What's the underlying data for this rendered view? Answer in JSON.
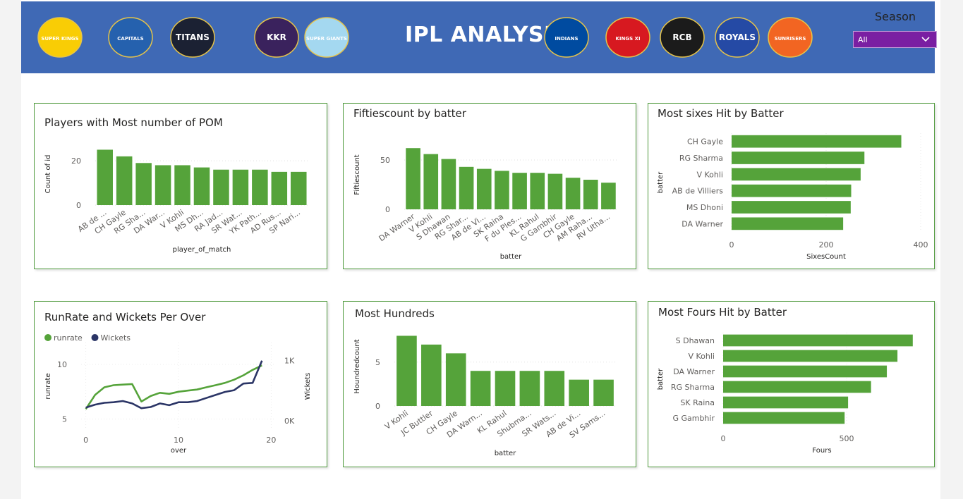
{
  "header": {
    "title": "IPL ANALYSIS",
    "season_label": "Season",
    "season_value": "All",
    "background": "#3f69b5",
    "logos_left": [
      {
        "name": "csk-logo",
        "text": "SUPER KINGS",
        "color": "#f9cd05"
      },
      {
        "name": "dc-logo",
        "text": "CAPITALS",
        "color": "#2561ae"
      },
      {
        "name": "gt-logo",
        "text": "TITANS",
        "color": "#1b2133"
      },
      {
        "name": "kkr-logo",
        "text": "KKR",
        "color": "#3a225d"
      },
      {
        "name": "lsg-logo",
        "text": "SUPER GIANTS",
        "color": "#a4d8f0"
      }
    ],
    "logos_right": [
      {
        "name": "mi-logo",
        "text": "INDIANS",
        "color": "#004ba0"
      },
      {
        "name": "pbks-logo",
        "text": "KINGS XI",
        "color": "#d71920"
      },
      {
        "name": "rcb-logo",
        "text": "RCB",
        "color": "#1b1b1b"
      },
      {
        "name": "rr-logo",
        "text": "ROYALS",
        "color": "#254aa5"
      },
      {
        "name": "srh-logo",
        "text": "SUNRISERS",
        "color": "#f26522"
      }
    ]
  },
  "chart_data": [
    {
      "id": "pom",
      "type": "bar",
      "title": "Players with Most number of POM",
      "xlabel": "player_of_match",
      "ylabel": "Count of id",
      "categories": [
        "AB de ...",
        "CH Gayle",
        "RG Sha...",
        "DA War...",
        "V Kohli",
        "MS Dh...",
        "RA Jad...",
        "SR Wat...",
        "YK Path...",
        "AD Rus...",
        "SP Nari..."
      ],
      "values": [
        25,
        22,
        19,
        18,
        18,
        17,
        16,
        16,
        16,
        15,
        15
      ],
      "ylim": [
        0,
        28
      ],
      "yticks": [
        0,
        20
      ],
      "color": "#55a33a"
    },
    {
      "id": "fifties",
      "type": "bar",
      "title": "Fiftiescount by batter",
      "xlabel": "batter",
      "ylabel": "Fiftiescount",
      "categories": [
        "DA Warner",
        "V Kohli",
        "S Dhawan",
        "RG Shar...",
        "AB de Vi...",
        "SK Raina",
        "F du Ples...",
        "KL Rahul",
        "G Gambhir",
        "CH Gayle",
        "AM Raha...",
        "RV Utha..."
      ],
      "values": [
        62,
        56,
        51,
        43,
        41,
        39,
        37,
        37,
        36,
        32,
        30,
        27
      ],
      "ylim": [
        0,
        70
      ],
      "yticks": [
        0,
        50
      ],
      "color": "#55a33a"
    },
    {
      "id": "sixes",
      "type": "bar-horizontal",
      "title": "Most sixes Hit by Batter",
      "xlabel": "SixesCount",
      "ylabel": "batter",
      "categories": [
        "CH Gayle",
        "RG Sharma",
        "V Kohli",
        "AB de Villiers",
        "MS Dhoni",
        "DA Warner"
      ],
      "values": [
        359,
        281,
        273,
        253,
        252,
        236
      ],
      "xlim": [
        0,
        400
      ],
      "xticks": [
        0,
        200,
        400
      ],
      "color": "#55a33a"
    },
    {
      "id": "runrate",
      "type": "line",
      "title": "RunRate and Wickets Per Over",
      "xlabel": "over",
      "ylabel": "runrate",
      "y2label": "Wickets",
      "x": [
        0,
        1,
        2,
        3,
        4,
        5,
        6,
        7,
        8,
        9,
        10,
        11,
        12,
        13,
        14,
        15,
        16,
        17,
        18,
        19
      ],
      "xticks": [
        0,
        10,
        20
      ],
      "xlim": [
        -0.5,
        20.5
      ],
      "yticks": [
        5,
        10
      ],
      "ylim": [
        4,
        12
      ],
      "y2ticks": [
        {
          "v": 0,
          "label": "0K"
        },
        {
          "v": 1000,
          "label": "1K"
        }
      ],
      "y2lim": [
        -150,
        1300
      ],
      "series": [
        {
          "name": "runrate",
          "axis": "left",
          "color": "#55a33a",
          "values": [
            5.9,
            7.2,
            7.9,
            8.1,
            8.15,
            8.2,
            6.6,
            7.1,
            7.4,
            7.3,
            7.5,
            7.6,
            7.7,
            7.9,
            8.1,
            8.3,
            8.6,
            9.0,
            9.5,
            9.9
          ]
        },
        {
          "name": "Wickets",
          "axis": "right",
          "color": "#2b3566",
          "values": [
            220,
            270,
            300,
            310,
            330,
            290,
            210,
            230,
            290,
            260,
            310,
            310,
            330,
            380,
            430,
            480,
            510,
            620,
            630,
            1000
          ]
        }
      ],
      "color": "#55a33a"
    },
    {
      "id": "hundreds",
      "type": "bar",
      "title": "Most Hundreds",
      "xlabel": "batter",
      "ylabel": "Houndredcount",
      "categories": [
        "V Kohli",
        "JC Buttler",
        "CH Gayle",
        "DA Warn...",
        "KL Rahul",
        "Shubma...",
        "SR Wats...",
        "AB de Vi...",
        "SV Sams..."
      ],
      "values": [
        8,
        7,
        6,
        4,
        4,
        4,
        4,
        3,
        3
      ],
      "ylim": [
        0,
        9
      ],
      "yticks": [
        0,
        5
      ],
      "color": "#55a33a"
    },
    {
      "id": "fours",
      "type": "bar-horizontal",
      "title": "Most Fours Hit by Batter",
      "xlabel": "Fours",
      "ylabel": "batter",
      "categories": [
        "S Dhawan",
        "V Kohli",
        "DA Warner",
        "RG Sharma",
        "SK Raina",
        "G Gambhir"
      ],
      "values": [
        768,
        706,
        663,
        599,
        506,
        492
      ],
      "xlim": [
        0,
        800
      ],
      "xticks": [
        0,
        500
      ],
      "color": "#55a33a"
    }
  ]
}
